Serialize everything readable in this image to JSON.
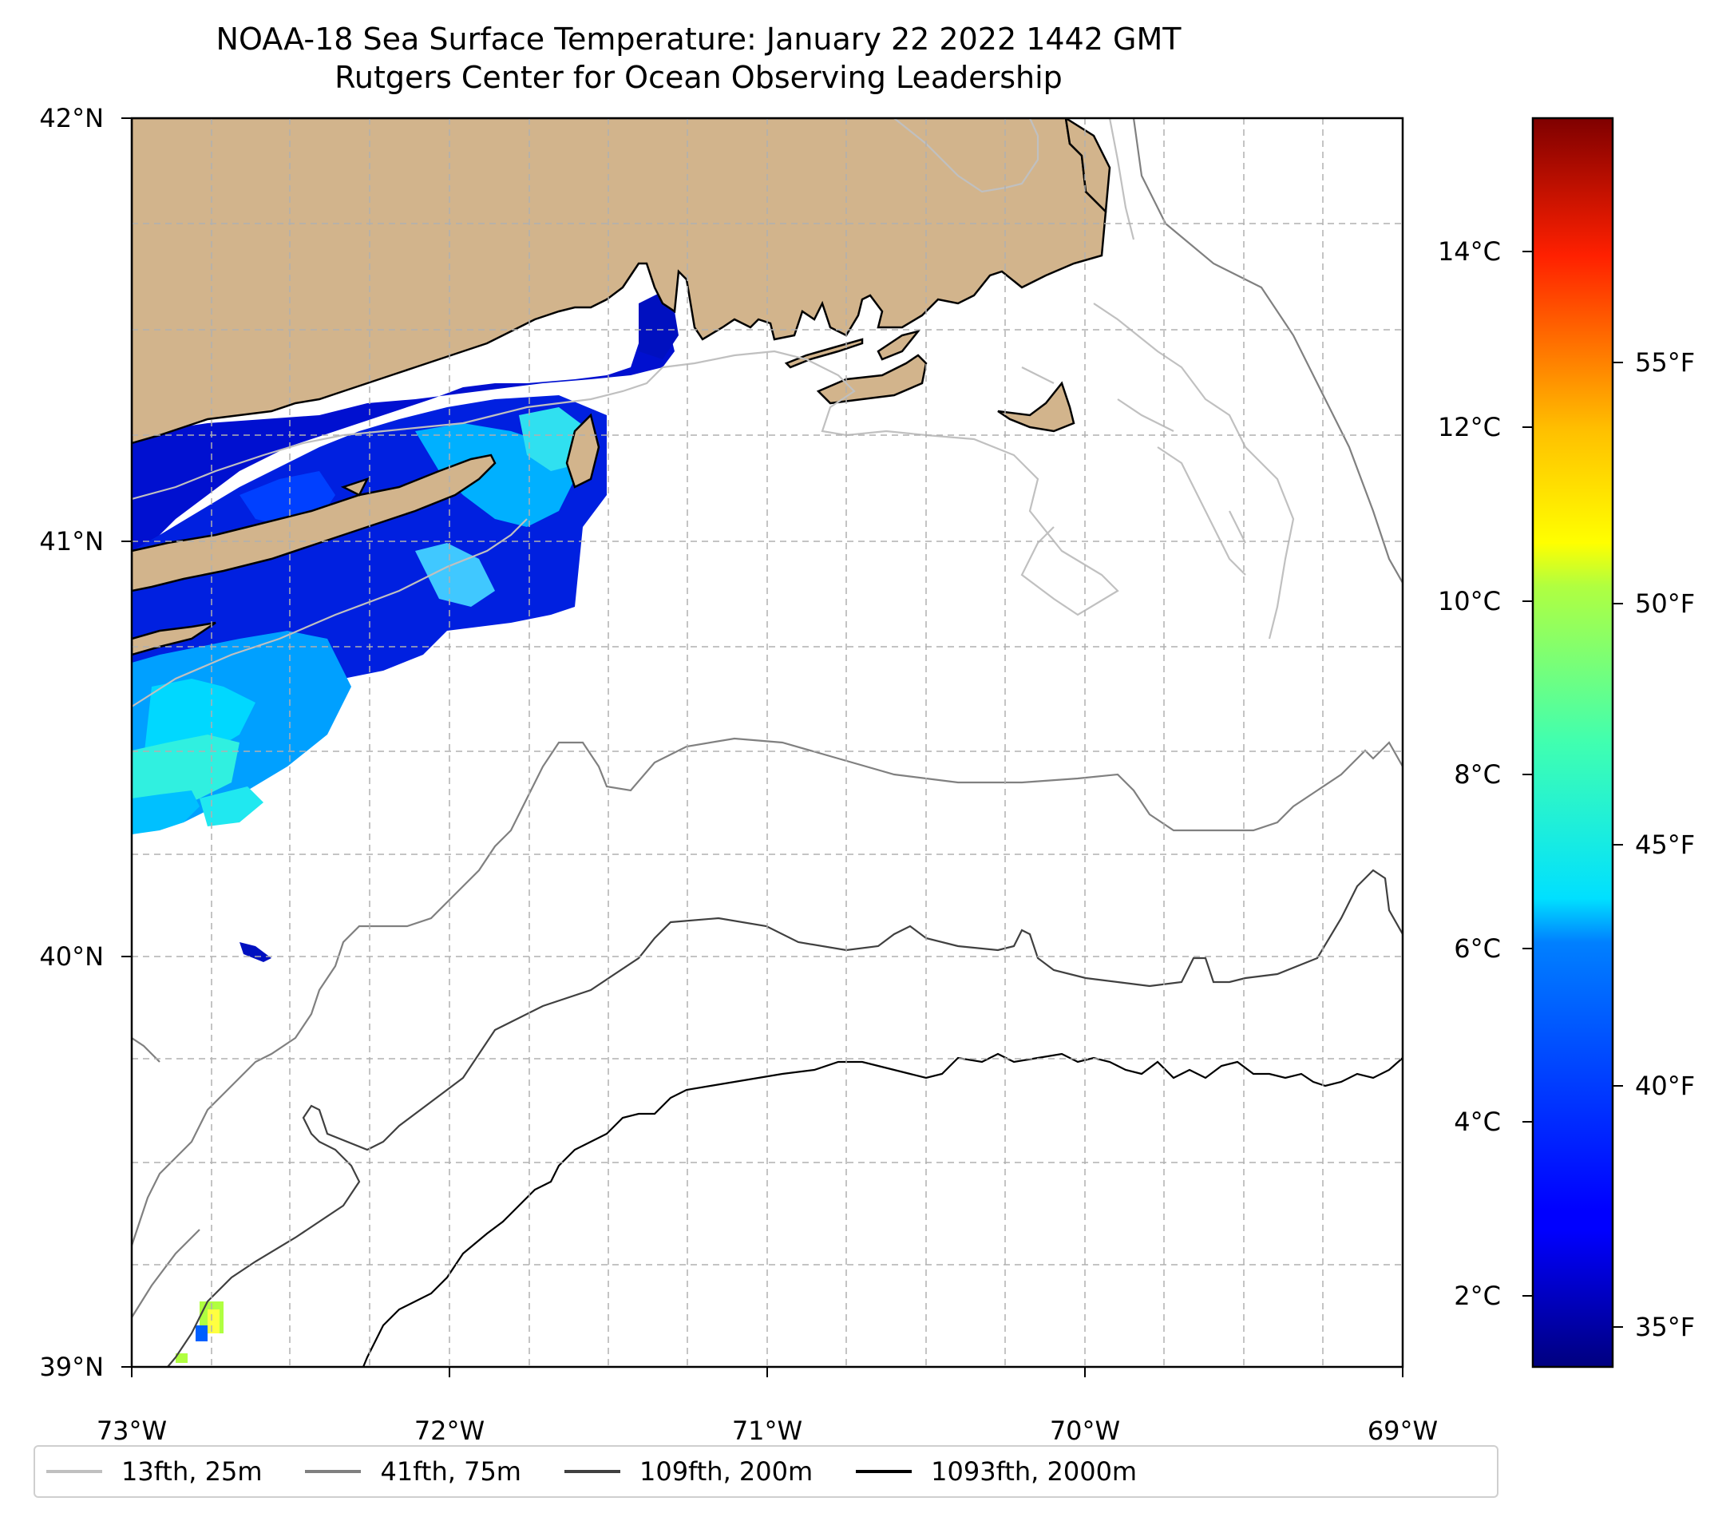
{
  "title": "NOAA-18 Sea Surface Temperature: January 22 2022 1442 GMT",
  "subtitle": "Rutgers Center for Ocean Observing Leadership",
  "axes": {
    "y_ticks": [
      "42°N",
      "41°N",
      "40°N",
      "39°N"
    ],
    "x_ticks": [
      "73°W",
      "72°W",
      "71°W",
      "70°W",
      "69°W"
    ],
    "lat_range": [
      39,
      42
    ],
    "lon_range": [
      -73,
      -69
    ]
  },
  "colorbar": {
    "celsius_ticks": [
      "14°C",
      "12°C",
      "10°C",
      "8°C",
      "6°C",
      "4°C",
      "2°C"
    ],
    "fahrenheit_ticks": [
      "55°F",
      "50°F",
      "45°F",
      "40°F",
      "35°F"
    ],
    "celsius_range": [
      1.3,
      15.6
    ],
    "colormap": "jet"
  },
  "legend": [
    {
      "label": "13fth, 25m",
      "color": "#c0c0c0"
    },
    {
      "label": "41fth, 75m",
      "color": "#808080"
    },
    {
      "label": "109fth, 200m",
      "color": "#404040"
    },
    {
      "label": "1093fth, 2000m",
      "color": "#000000"
    }
  ],
  "colors": {
    "land": "#d2b48c",
    "ocean": "#ffffff",
    "grid": "#b0b0b0"
  }
}
